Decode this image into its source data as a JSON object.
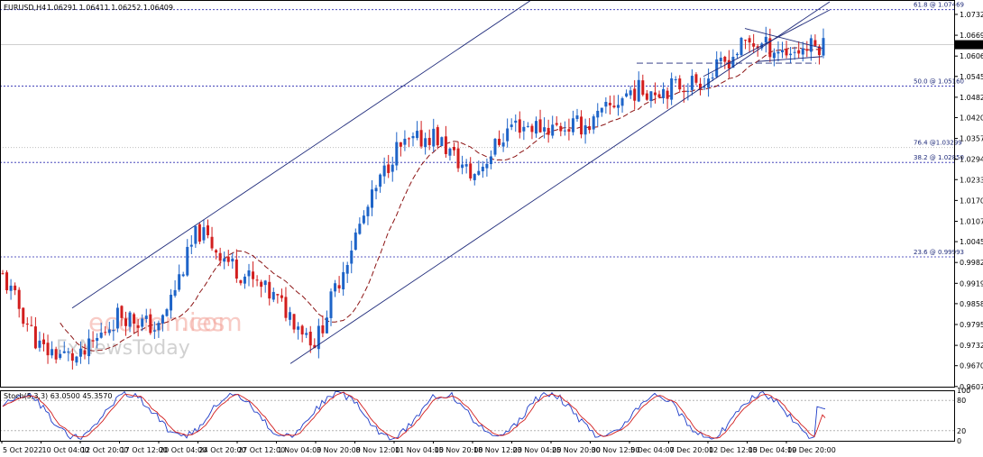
{
  "header": {
    "symbol": "EURUSD,H4",
    "ohlc": "1.06291 1.06411 1.06252 1.06409"
  },
  "watermark": {
    "line1": "economies",
    "suffix": ".com",
    "line2": "FxNewsToday"
  },
  "colors": {
    "background": "#ffffff",
    "candle": "#1e64c8",
    "candle_down": "#d21e1e",
    "ma": "#8c1414",
    "channel": "#1e2a7a",
    "fib": "#2a2ab0",
    "stoch_main": "#1e3cc8",
    "stoch_signal": "#d21e1e",
    "price_box": "#000000"
  },
  "chart_data": [
    {
      "type": "candlestick",
      "title": "EURUSD,H4",
      "ylim": [
        0.9607,
        1.0776
      ],
      "y_ticks": [
        "1.07325",
        "1.06695",
        "1.06065",
        "1.05450",
        "1.04820",
        "1.04205",
        "1.03575",
        "1.02945",
        "1.02330",
        "1.01700",
        "1.01070",
        "1.00455",
        "0.99825",
        "0.99195",
        "0.98580",
        "0.97950",
        "0.97320",
        "0.96705",
        "0.96075"
      ],
      "x_ticks": [
        "5 Oct 2022",
        "10 Oct 04:00",
        "12 Oct 20:00",
        "17 Oct 12:00",
        "20 Oct 04:00",
        "24 Oct 20:00",
        "27 Oct 12:00",
        "1 Nov 04:00",
        "3 Nov 20:00",
        "8 Nov 12:00",
        "11 Nov 04:00",
        "15 Nov 20:00",
        "18 Nov 12:00",
        "23 Nov 04:00",
        "25 Nov 20:00",
        "30 Nov 12:00",
        "5 Dec 04:00",
        "7 Dec 20:00",
        "12 Dec 12:00",
        "15 Dec 04:00",
        "19 Dec 20:00"
      ],
      "last_price": "1.06409",
      "key_closes": [
        {
          "x": "5 Oct 2022",
          "y": 0.9945
        },
        {
          "x": "10 Oct 04:00",
          "y": 0.972
        },
        {
          "x": "12 Oct 20:00",
          "y": 0.969
        },
        {
          "x": "17 Oct 12:00",
          "y": 0.983
        },
        {
          "x": "20 Oct 04:00",
          "y": 0.978
        },
        {
          "x": "24 Oct 20:00",
          "y": 1.008
        },
        {
          "x": "27 Oct 12:00",
          "y": 0.996
        },
        {
          "x": "1 Nov 04:00",
          "y": 0.987
        },
        {
          "x": "3 Nov 20:00",
          "y": 0.974
        },
        {
          "x": "8 Nov 12:00",
          "y": 1.006
        },
        {
          "x": "11 Nov 04:00",
          "y": 1.032
        },
        {
          "x": "15 Nov 20:00",
          "y": 1.037
        },
        {
          "x": "18 Nov 12:00",
          "y": 1.024
        },
        {
          "x": "23 Nov 04:00",
          "y": 1.04
        },
        {
          "x": "25 Nov 20:00",
          "y": 1.039
        },
        {
          "x": "30 Nov 12:00",
          "y": 1.04
        },
        {
          "x": "5 Dec 04:00",
          "y": 1.05
        },
        {
          "x": "7 Dec 20:00",
          "y": 1.051
        },
        {
          "x": "12 Dec 12:00",
          "y": 1.054
        },
        {
          "x": "15 Dec 04:00",
          "y": 1.065
        },
        {
          "x": "19 Dec 20:00",
          "y": 1.062
        }
      ],
      "fib_levels": [
        {
          "label": "61.8 @ 1.07469",
          "value": 1.07469,
          "style": "dotted"
        },
        {
          "label": "50.0 @ 1.05160",
          "value": 1.0516,
          "style": "dotted"
        },
        {
          "label": "76.4 @1.03299",
          "value": 1.03299,
          "style": "faint"
        },
        {
          "label": "38.2 @ 1.02850",
          "value": 1.0285,
          "style": "dotted"
        },
        {
          "label": "23.6 @ 0.99993",
          "value": 0.99993,
          "style": "dotted"
        }
      ]
    },
    {
      "type": "line",
      "title": "Stoch(5,3,3) 63.0500 45.3570",
      "ylim": [
        0,
        100
      ],
      "y_ticks": [
        "100",
        "80",
        "20",
        "0"
      ],
      "series_values": {
        "main": 63.05,
        "signal": 45.357
      }
    }
  ]
}
